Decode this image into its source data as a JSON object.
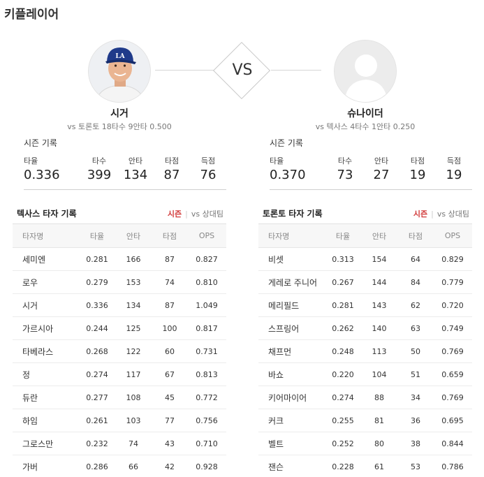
{
  "title": "키플레이어",
  "vs_label": "VS",
  "players": [
    {
      "name": "시거",
      "vs_info": "vs 토론토   18타수 9안타 0.500",
      "photo": "player-photo"
    },
    {
      "name": "슈나이더",
      "vs_info": "vs 텍사스   4타수 1안타 0.250",
      "photo": "placeholder-silhouette"
    }
  ],
  "season": [
    {
      "label": "시즌 기록",
      "stats": [
        {
          "label": "타율",
          "value": "0.336"
        },
        {
          "label": "타수",
          "value": "399"
        },
        {
          "label": "안타",
          "value": "134"
        },
        {
          "label": "타점",
          "value": "87"
        },
        {
          "label": "득점",
          "value": "76"
        }
      ]
    },
    {
      "label": "시즌 기록",
      "stats": [
        {
          "label": "타율",
          "value": "0.370"
        },
        {
          "label": "타수",
          "value": "73"
        },
        {
          "label": "안타",
          "value": "27"
        },
        {
          "label": "타점",
          "value": "19"
        },
        {
          "label": "득점",
          "value": "19"
        }
      ]
    }
  ],
  "tables": [
    {
      "title": "텍사스 타자 기록",
      "tab_active": "시즌",
      "tab_separator": "|",
      "tab_other": "vs 상대팀",
      "headers": [
        "타자명",
        "타율",
        "안타",
        "타점",
        "OPS"
      ],
      "rows": [
        [
          "세미엔",
          "0.281",
          "166",
          "87",
          "0.827"
        ],
        [
          "로우",
          "0.279",
          "153",
          "74",
          "0.810"
        ],
        [
          "시거",
          "0.336",
          "134",
          "87",
          "1.049"
        ],
        [
          "가르시아",
          "0.244",
          "125",
          "100",
          "0.817"
        ],
        [
          "타베라스",
          "0.268",
          "122",
          "60",
          "0.731"
        ],
        [
          "정",
          "0.274",
          "117",
          "67",
          "0.813"
        ],
        [
          "듀란",
          "0.277",
          "108",
          "45",
          "0.772"
        ],
        [
          "하임",
          "0.261",
          "103",
          "77",
          "0.756"
        ],
        [
          "그로스만",
          "0.232",
          "74",
          "43",
          "0.710"
        ],
        [
          "가버",
          "0.286",
          "66",
          "42",
          "0.928"
        ]
      ]
    },
    {
      "title": "토론토 타자 기록",
      "tab_active": "시즌",
      "tab_separator": "|",
      "tab_other": "vs 상대팀",
      "headers": [
        "타자명",
        "타율",
        "안타",
        "타점",
        "OPS"
      ],
      "rows": [
        [
          "비셋",
          "0.313",
          "154",
          "64",
          "0.829"
        ],
        [
          "게레로 주니어",
          "0.267",
          "144",
          "84",
          "0.779"
        ],
        [
          "메리필드",
          "0.281",
          "143",
          "62",
          "0.720"
        ],
        [
          "스프링어",
          "0.262",
          "140",
          "63",
          "0.749"
        ],
        [
          "채프먼",
          "0.248",
          "113",
          "50",
          "0.769"
        ],
        [
          "바쇼",
          "0.220",
          "104",
          "51",
          "0.659"
        ],
        [
          "키어마이어",
          "0.274",
          "88",
          "34",
          "0.769"
        ],
        [
          "커크",
          "0.255",
          "81",
          "36",
          "0.695"
        ],
        [
          "벨트",
          "0.252",
          "80",
          "38",
          "0.844"
        ],
        [
          "잰슨",
          "0.228",
          "61",
          "53",
          "0.786"
        ]
      ]
    }
  ],
  "colors": {
    "accent_red": "#d23b3b",
    "cap_blue": "#1f3a8a"
  }
}
